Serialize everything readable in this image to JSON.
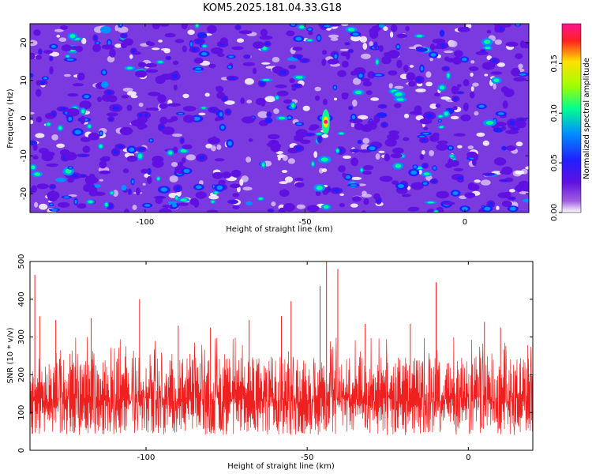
{
  "title": "KOM5.2025.181.04.33.G18",
  "colors": {
    "background": "#ffffff",
    "snr_line": "#ee2020",
    "frame": "#000000",
    "colormap": [
      "#ffffff",
      "#a060e0",
      "#6010e0",
      "#2020ff",
      "#0090ff",
      "#00ff90",
      "#a0ff00",
      "#ffe000",
      "#ff2020",
      "#ff1493"
    ]
  },
  "chart_data": [
    {
      "type": "heatmap",
      "title": "KOM5.2025.181.04.33.G18",
      "xlabel": "Height of straight line (km)",
      "ylabel": "Frequency (Hz)",
      "xlim": [
        -136,
        20
      ],
      "ylim": [
        -25,
        25
      ],
      "xticks": [
        -100,
        -50,
        0
      ],
      "yticks": [
        -20,
        -10,
        0,
        10,
        20
      ],
      "colorbar": {
        "label": "Normalized spectral amplitude",
        "range": [
          0,
          0.19
        ],
        "ticks": [
          "0.00",
          "0.05",
          "0.10",
          "0.15"
        ],
        "tick_values": [
          0.0,
          0.05,
          0.1,
          0.15
        ]
      },
      "peak": {
        "x": -43.5,
        "y": -1,
        "value": 0.19
      },
      "notable_features": [
        {
          "x": -43,
          "y": 0,
          "value": 0.12
        },
        {
          "x": -29,
          "y": -8,
          "value": 0.09
        },
        {
          "x": -20,
          "y": -18,
          "value": 0.09
        },
        {
          "x": -87,
          "y": -14,
          "value": 0.08
        },
        {
          "x": 0,
          "y": -24,
          "value": 0.1
        },
        {
          "x": 7,
          "y": -24,
          "value": 0.09
        },
        {
          "x": 15,
          "y": -24,
          "value": 0.09
        },
        {
          "x": -52,
          "y": 21,
          "value": 0.08
        }
      ]
    },
    {
      "type": "line",
      "xlabel": "Height of straight line (km)",
      "ylabel": "SNR (10 * v/v)",
      "xlim": [
        -136,
        20
      ],
      "ylim": [
        0,
        500
      ],
      "xticks": [
        -100,
        -50,
        0
      ],
      "yticks": [
        0,
        100,
        200,
        300,
        400,
        500
      ],
      "grid": false,
      "baseline_range": [
        60,
        230
      ],
      "spikes": [
        {
          "x": -134.5,
          "y": 465
        },
        {
          "x": -133,
          "y": 355
        },
        {
          "x": -128,
          "y": 345
        },
        {
          "x": -117,
          "y": 350
        },
        {
          "x": -102,
          "y": 400
        },
        {
          "x": -90,
          "y": 330
        },
        {
          "x": -80,
          "y": 325
        },
        {
          "x": -68,
          "y": 345
        },
        {
          "x": -58,
          "y": 355
        },
        {
          "x": -55,
          "y": 395
        },
        {
          "x": -46,
          "y": 435
        },
        {
          "x": -44,
          "y": 500
        },
        {
          "x": -40.5,
          "y": 480
        },
        {
          "x": -32,
          "y": 335
        },
        {
          "x": -18,
          "y": 335
        },
        {
          "x": -10,
          "y": 445
        },
        {
          "x": 5,
          "y": 340
        },
        {
          "x": 10,
          "y": 325
        }
      ]
    }
  ]
}
